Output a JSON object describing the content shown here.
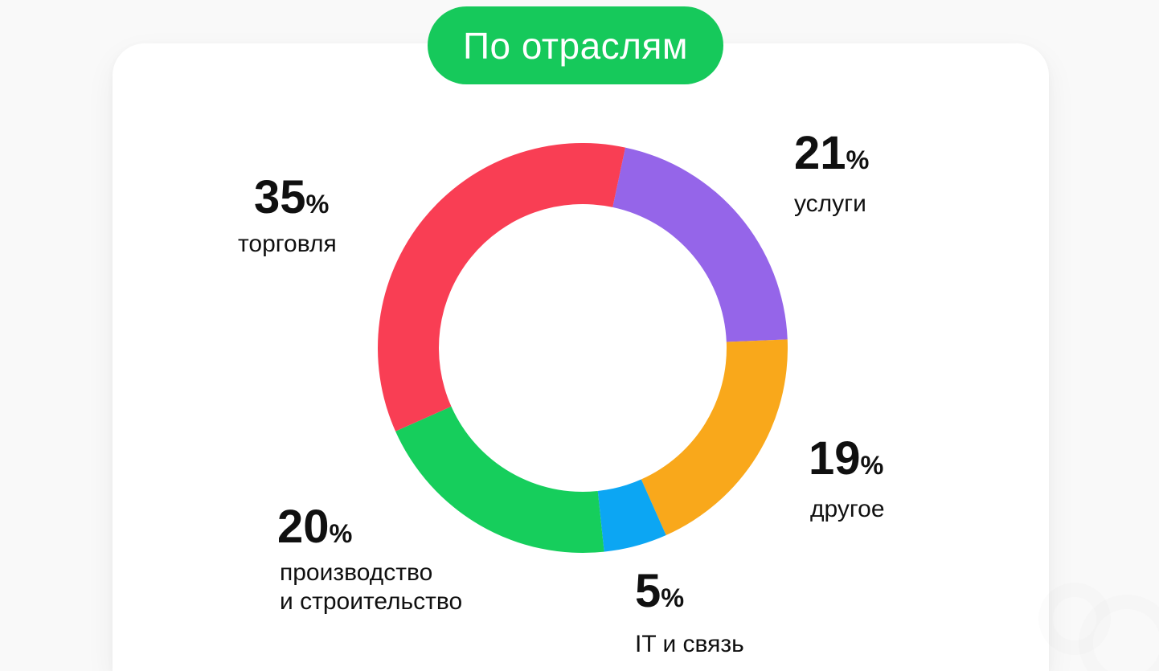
{
  "page": {
    "background_color": "#f9f9f9",
    "card_color": "#ffffff",
    "text_color": "#101010"
  },
  "header": {
    "badge_label": "По отраслям",
    "badge_color": "#16c95b",
    "badge_text_color": "#ffffff"
  },
  "chart_data": {
    "type": "pie",
    "subtype": "donut",
    "title": "По отраслям",
    "start_angle_deg": 12,
    "direction": "clockwise",
    "inner_radius_ratio": 0.7,
    "slices": [
      {
        "label": "услуги",
        "value": 21,
        "unit": "%",
        "color": "#9565e9"
      },
      {
        "label": "другое",
        "value": 19,
        "unit": "%",
        "color": "#f9a81b"
      },
      {
        "label": "IT и связь",
        "value": 5,
        "unit": "%",
        "color": "#0ca6f3"
      },
      {
        "label": "производство\nи строительство",
        "value": 20,
        "unit": "%",
        "color": "#16ce5c"
      },
      {
        "label": "торговля",
        "value": 35,
        "unit": "%",
        "color": "#f93e54"
      }
    ]
  }
}
